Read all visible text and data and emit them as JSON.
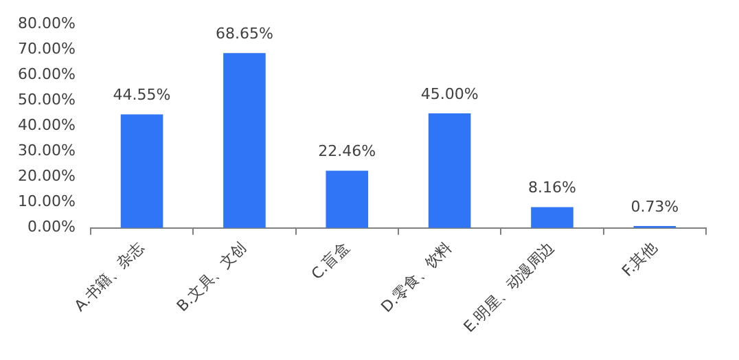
{
  "chart_data": {
    "type": "bar",
    "categories": [
      "A.书籍、杂志",
      "B.文具、文创",
      "C.盲盒",
      "D.零食、饮料",
      "E.明星、动漫周边",
      "F.其他"
    ],
    "values": [
      44.55,
      68.65,
      22.46,
      45.0,
      8.16,
      0.73
    ],
    "value_labels": [
      "44.55%",
      "68.65%",
      "22.46%",
      "45.00%",
      "8.16%",
      "0.73%"
    ],
    "color": "#2f75f5",
    "ylim": [
      0,
      80
    ],
    "yticks": [
      {
        "value": 0,
        "label": "0.00%"
      },
      {
        "value": 10,
        "label": "10.00%"
      },
      {
        "value": 20,
        "label": "20.00%"
      },
      {
        "value": 30,
        "label": "30.00%"
      },
      {
        "value": 40,
        "label": "40.00%"
      },
      {
        "value": 50,
        "label": "50.00%"
      },
      {
        "value": 60,
        "label": "60.00%"
      },
      {
        "value": 70,
        "label": "70.00%"
      },
      {
        "value": 80,
        "label": "80.00%"
      }
    ]
  }
}
